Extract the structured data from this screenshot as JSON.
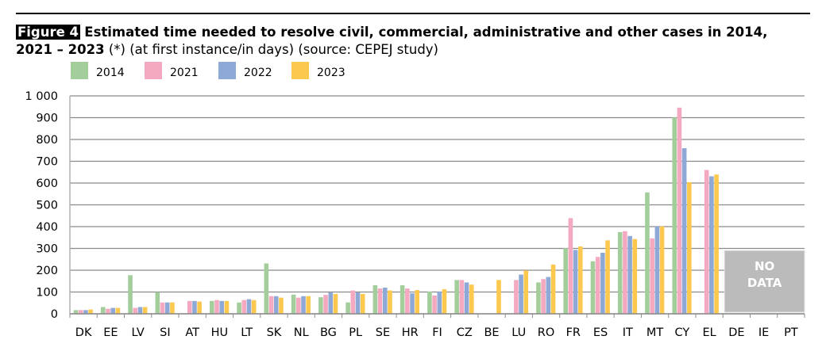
{
  "title": {
    "figure_label": "Figure 4",
    "main": "Estimated time needed to resolve civil, commercial, administrative and other cases in 2014,",
    "line2_bold": "2021 – 2023",
    "line2_rest": " (*) (at first instance/in days) (source: CEPEJ study)"
  },
  "chart_data": {
    "type": "bar",
    "title": "Estimated time needed to resolve civil, commercial, administrative and other cases in 2014, 2021 – 2023 (*) (at first instance/in days) (source: CEPEJ study)",
    "xlabel": "",
    "ylabel": "",
    "ylim": [
      0,
      1000
    ],
    "yticks": [
      0,
      100,
      200,
      300,
      400,
      500,
      600,
      700,
      800,
      900,
      1000
    ],
    "ytick_labels": [
      "0",
      "100",
      "200",
      "300",
      "400",
      "500",
      "600",
      "700",
      "800",
      "900",
      "1 000"
    ],
    "grid": true,
    "legend_position": "top",
    "categories": [
      "DK",
      "EE",
      "LV",
      "SI",
      "AT",
      "HU",
      "LT",
      "SK",
      "NL",
      "BG",
      "PL",
      "SE",
      "HR",
      "FI",
      "CZ",
      "BE",
      "LU",
      "RO",
      "FR",
      "ES",
      "IT",
      "MT",
      "CY",
      "EL",
      "DE",
      "IE",
      "PT"
    ],
    "series": [
      {
        "name": "2014",
        "color": "#a3cd9b",
        "values": [
          17,
          31,
          177,
          99,
          null,
          59,
          52,
          231,
          88,
          76,
          52,
          131,
          131,
          102,
          155,
          null,
          null,
          144,
          301,
          241,
          375,
          557,
          901,
          null,
          null,
          null,
          null
        ]
      },
      {
        "name": "2021",
        "color": "#f4a9c0",
        "values": [
          17,
          23,
          27,
          52,
          59,
          63,
          63,
          81,
          74,
          87,
          107,
          116,
          116,
          84,
          155,
          null,
          155,
          159,
          439,
          261,
          379,
          346,
          946,
          660,
          null,
          null,
          null
        ]
      },
      {
        "name": "2022",
        "color": "#8fa9d6",
        "values": [
          17,
          27,
          31,
          52,
          59,
          59,
          67,
          81,
          81,
          98,
          98,
          120,
          94,
          102,
          144,
          null,
          180,
          169,
          293,
          280,
          357,
          401,
          760,
          631,
          null,
          null,
          null
        ]
      },
      {
        "name": "2023",
        "color": "#fcc84e",
        "values": [
          20,
          27,
          31,
          52,
          56,
          59,
          63,
          74,
          81,
          91,
          91,
          107,
          109,
          113,
          134,
          155,
          199,
          226,
          309,
          337,
          343,
          401,
          604,
          639,
          null,
          null,
          null
        ]
      }
    ],
    "annotations": [
      {
        "text": "NO DATA",
        "categories": [
          "DE",
          "IE",
          "PT"
        ]
      }
    ]
  }
}
